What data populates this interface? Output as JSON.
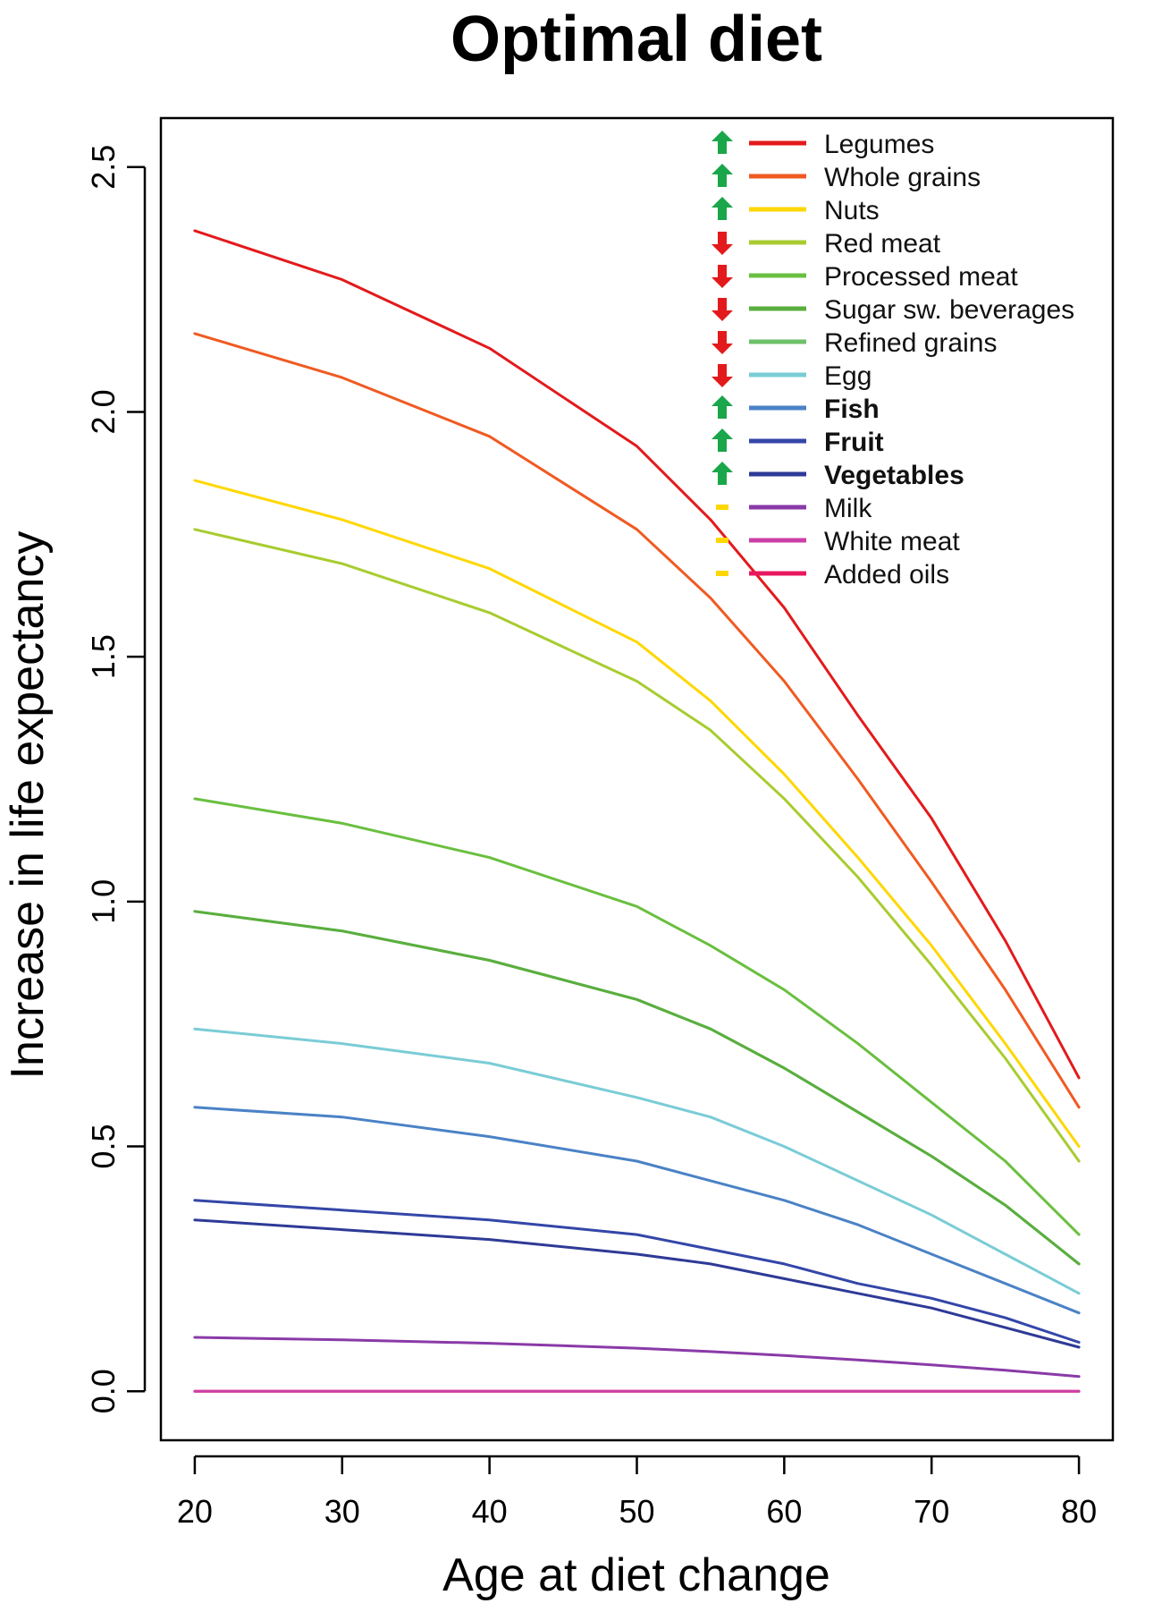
{
  "chart_data": {
    "type": "line",
    "title": "Optimal diet",
    "xlabel": "Age at diet change",
    "ylabel": "Increase in life expectancy",
    "xlim": [
      17.7,
      82.3
    ],
    "ylim": [
      -0.1,
      2.6
    ],
    "x_ticks": [
      20,
      30,
      40,
      50,
      60,
      70,
      80
    ],
    "x_tick_labels": [
      "20",
      "30",
      "40",
      "50",
      "60",
      "70",
      "80"
    ],
    "y_ticks": [
      0.0,
      0.5,
      1.0,
      1.5,
      2.0,
      2.5
    ],
    "y_tick_labels": [
      "0.0",
      "0.5",
      "1.0",
      "1.5",
      "2.0",
      "2.5"
    ],
    "grid": false,
    "legend_position": "top-right",
    "x": [
      20,
      30,
      40,
      50,
      55,
      60,
      65,
      70,
      75,
      80
    ],
    "series": [
      {
        "name": "Legumes",
        "color": "#e31a1c",
        "direction": "up",
        "bold": false,
        "values": [
          2.37,
          2.27,
          2.13,
          1.93,
          1.78,
          1.6,
          1.38,
          1.17,
          0.92,
          0.64
        ]
      },
      {
        "name": "Whole grains",
        "color": "#f05a22",
        "direction": "up",
        "bold": false,
        "values": [
          2.16,
          2.07,
          1.95,
          1.76,
          1.62,
          1.45,
          1.25,
          1.04,
          0.82,
          0.58
        ]
      },
      {
        "name": "Nuts",
        "color": "#ffd700",
        "direction": "up",
        "bold": false,
        "values": [
          1.86,
          1.78,
          1.68,
          1.53,
          1.41,
          1.26,
          1.09,
          0.91,
          0.71,
          0.5
        ]
      },
      {
        "name": "Red meat",
        "color": "#a8cc30",
        "direction": "down",
        "bold": false,
        "values": [
          1.76,
          1.69,
          1.59,
          1.45,
          1.35,
          1.21,
          1.05,
          0.87,
          0.68,
          0.47
        ]
      },
      {
        "name": "Processed meat",
        "color": "#6abf40",
        "direction": "down",
        "bold": false,
        "values": [
          1.21,
          1.16,
          1.09,
          0.99,
          0.91,
          0.82,
          0.71,
          0.59,
          0.47,
          0.32
        ]
      },
      {
        "name": "Sugar  sw. beverages",
        "color": "#5aae3e",
        "direction": "down",
        "bold": false,
        "values": [
          0.98,
          0.94,
          0.88,
          0.8,
          0.74,
          0.66,
          0.57,
          0.48,
          0.38,
          0.26
        ]
      },
      {
        "name": "Refined grains",
        "color": "#6ec06a",
        "direction": "down",
        "bold": false,
        "values": [
          0.98,
          0.94,
          0.88,
          0.8,
          0.74,
          0.66,
          0.57,
          0.48,
          0.38,
          0.26
        ]
      },
      {
        "name": "Egg",
        "color": "#7accd6",
        "direction": "down",
        "bold": false,
        "values": [
          0.74,
          0.71,
          0.67,
          0.6,
          0.56,
          0.5,
          0.43,
          0.36,
          0.28,
          0.2
        ]
      },
      {
        "name": "Fish",
        "color": "#4a82c6",
        "direction": "up",
        "bold": true,
        "values": [
          0.58,
          0.56,
          0.52,
          0.47,
          0.43,
          0.39,
          0.34,
          0.28,
          0.22,
          0.16
        ]
      },
      {
        "name": "Fruit",
        "color": "#3446a8",
        "direction": "up",
        "bold": true,
        "values": [
          0.39,
          0.37,
          0.35,
          0.32,
          0.29,
          0.26,
          0.22,
          0.19,
          0.15,
          0.1
        ]
      },
      {
        "name": "Vegetables",
        "color": "#2e3a96",
        "direction": "up",
        "bold": true,
        "values": [
          0.35,
          0.33,
          0.31,
          0.28,
          0.26,
          0.23,
          0.2,
          0.17,
          0.13,
          0.09
        ]
      },
      {
        "name": "Milk",
        "color": "#8a3aa8",
        "direction": "neutral",
        "bold": false,
        "values": [
          0.11,
          0.105,
          0.098,
          0.088,
          0.081,
          0.073,
          0.064,
          0.054,
          0.043,
          0.03
        ]
      },
      {
        "name": "White meat",
        "color": "#cc3fa6",
        "direction": "neutral",
        "bold": false,
        "values": [
          0,
          0,
          0,
          0,
          0,
          0,
          0,
          0,
          0,
          0
        ]
      },
      {
        "name": "Added oils",
        "color": "#e8185e",
        "direction": "neutral",
        "bold": false,
        "values": [
          0,
          0,
          0,
          0,
          0,
          0,
          0,
          0,
          0,
          0
        ]
      }
    ],
    "arrow_colors": {
      "up": "#1aa64a",
      "down": "#e31a1c",
      "neutral": "#ffd700"
    }
  }
}
